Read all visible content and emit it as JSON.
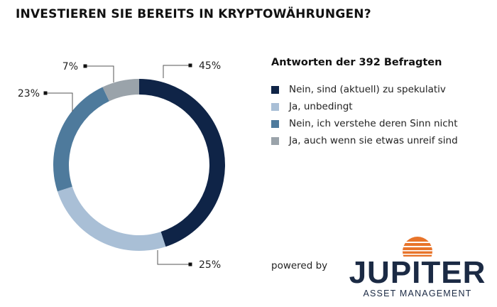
{
  "title": "INVESTIEREN SIE BEREITS IN KRYPTOWÄHRUNGEN?",
  "chart_data": {
    "type": "pie",
    "donut": true,
    "title": "INVESTIEREN SIE BEREITS IN KRYPTOWÄHRUNGEN?",
    "legend_title": "Antworten der 392 Befragten",
    "legend_position": "right",
    "slices": [
      {
        "label": "Nein, sind (aktuell) zu spekulativ",
        "value": 45,
        "display": "45%",
        "color": "#0f2447"
      },
      {
        "label": "Ja, unbedingt",
        "value": 25,
        "display": "25%",
        "color": "#a9bfd6"
      },
      {
        "label": "Nein, ich verstehe deren Sinn nicht",
        "value": 23,
        "display": "23%",
        "color": "#4e7a9c"
      },
      {
        "label": "Ja, auch wenn sie etwas unreif sind",
        "value": 7,
        "display": "7%",
        "color": "#9aa3aa"
      }
    ]
  },
  "footer": {
    "powered_by": "powered by",
    "logo_name": "JUPITER",
    "logo_subtitle": "ASSET MANAGEMENT",
    "logo_color": "#1b2a44",
    "logo_accent": "#e8742a"
  }
}
